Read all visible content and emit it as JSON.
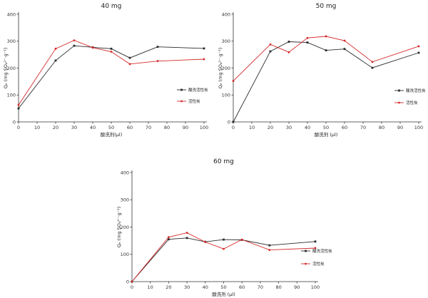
{
  "page": {
    "background": "#ffffff",
    "description_colors": {
      "series_black": "#2b2b2b",
      "series_red": "#d42a2a",
      "axis": "#333333"
    }
  },
  "chart_data": [
    {
      "type": "line",
      "title": "40 mg",
      "xlabel": "酸洗剂(μl)",
      "ylabel": "Qₑ (mg SO₄²⁻·g⁻¹)",
      "xlim": [
        0,
        100
      ],
      "ylim": [
        0,
        400
      ],
      "xticks": [
        0,
        10,
        20,
        30,
        40,
        50,
        60,
        70,
        80,
        90,
        100
      ],
      "yticks": [
        0,
        100,
        200,
        300,
        400
      ],
      "grid": false,
      "legend_position": "right-middle",
      "x": [
        0,
        20,
        30,
        40,
        50,
        60,
        75,
        100
      ],
      "series": [
        {
          "name": "酸洗活性炭",
          "color": "#2b2b2b",
          "marker": "square",
          "values": [
            50,
            228,
            283,
            277,
            272,
            238,
            279,
            273
          ]
        },
        {
          "name": "活性炭",
          "color": "#d42a2a",
          "marker": "circle",
          "values": [
            63,
            272,
            303,
            276,
            261,
            215,
            226,
            233
          ]
        }
      ]
    },
    {
      "type": "line",
      "title": "50 mg",
      "xlabel": "酸洗剂 (μl)",
      "ylabel": "Qₑ (mg SO₄²⁻·g⁻¹)",
      "xlim": [
        0,
        100
      ],
      "ylim": [
        0,
        400
      ],
      "xticks": [
        0,
        10,
        20,
        30,
        40,
        50,
        60,
        70,
        80,
        90,
        100
      ],
      "yticks": [
        0,
        100,
        200,
        300,
        400
      ],
      "grid": false,
      "legend_position": "right-middle",
      "x": [
        0,
        20,
        30,
        40,
        50,
        60,
        75,
        100
      ],
      "series": [
        {
          "name": "酸洗活性炭",
          "color": "#2b2b2b",
          "marker": "square",
          "values": [
            0,
            262,
            298,
            295,
            266,
            271,
            201,
            257
          ]
        },
        {
          "name": "活性炭",
          "color": "#d42a2a",
          "marker": "circle",
          "values": [
            152,
            288,
            259,
            312,
            318,
            302,
            223,
            281
          ]
        }
      ]
    },
    {
      "type": "line",
      "title": "60 mg",
      "xlabel": "酸洗剂 (μl)",
      "ylabel": "Qₑ (mg SO₄²⁻·g⁻¹)",
      "xlim": [
        0,
        100
      ],
      "ylim": [
        0,
        400
      ],
      "xticks": [
        0,
        10,
        20,
        30,
        40,
        50,
        60,
        70,
        80,
        90,
        100
      ],
      "yticks": [
        0,
        100,
        200,
        300,
        400
      ],
      "grid": false,
      "legend_position": "right-middle",
      "x": [
        0,
        20,
        30,
        40,
        50,
        60,
        75,
        100
      ],
      "series": [
        {
          "name": "酸洗活性炭",
          "color": "#2b2b2b",
          "marker": "square",
          "values": [
            0,
            155,
            160,
            146,
            154,
            153,
            133,
            147
          ]
        },
        {
          "name": "活性炭",
          "color": "#d42a2a",
          "marker": "circle",
          "values": [
            0,
            163,
            179,
            145,
            120,
            154,
            116,
            123
          ]
        }
      ]
    }
  ]
}
